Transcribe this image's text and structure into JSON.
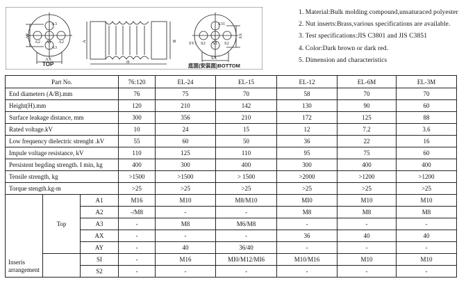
{
  "drawing": {
    "top_labels": {
      "a1": "A1",
      "a2": "A2",
      "a3": "A3",
      "ax": "AX",
      "ay": "AY",
      "caption": "TOP"
    },
    "side_labels": {
      "a": "A",
      "b": "B",
      "h": "H"
    },
    "bottom_labels": {
      "s1": "S1",
      "s2": "S2",
      "s31": "S31",
      "sx": "SX",
      "sy": "SY",
      "sy1": "SY1",
      "caption": "底面(安装面)BOTTOM"
    }
  },
  "notes": [
    "1. Material:Bulk molding compound,unsaturaced polyester",
    "2. Nut inserts:Brass,various specifications are available.",
    "3. Test specifications:JIS C3801 and JIS C3851",
    "4. Color:Dark brown or dark red.",
    "5. Dimension and characteristics"
  ],
  "table": {
    "header": [
      "Part No.",
      "76:120",
      "EL-24",
      "EL-15",
      "EL-12",
      "EL-6M",
      "EL-3M"
    ],
    "rows": [
      {
        "label": "End diameters (A/B).mm",
        "values": [
          "76",
          "75",
          "70",
          "58",
          "70",
          "70"
        ]
      },
      {
        "label": "Height(H).mm",
        "values": [
          "120",
          "210",
          "142",
          "130",
          "90",
          "60"
        ]
      },
      {
        "label": "Surface leakage distance, mm",
        "values": [
          "300",
          "356",
          "210",
          "172",
          "125",
          "88"
        ]
      },
      {
        "label": "Rated voltage.kV",
        "values": [
          "10",
          "24",
          "15",
          "12",
          "7.2",
          "3.6"
        ]
      },
      {
        "label": "Low frequency dielectric strenght .kV",
        "values": [
          "55",
          "60",
          "50",
          "36",
          "22",
          "16"
        ]
      },
      {
        "label": "Impule voltage resistance, kV",
        "values": [
          "110",
          "125",
          "110",
          "95",
          "75",
          "60"
        ]
      },
      {
        "label": "Persistent begding strength. I min, kg",
        "values": [
          "400",
          "300",
          "400",
          "300",
          "400",
          "400"
        ]
      },
      {
        "label": "Tensile strength, kg",
        "values": [
          ">1500",
          ">1500",
          "> 1500",
          ">2000",
          ">1200",
          ">1200"
        ]
      },
      {
        "label": "Torque stength.kg-m",
        "values": [
          ">25",
          ">25",
          ">25",
          ">25",
          ">25",
          ">25"
        ]
      }
    ],
    "inserts": {
      "group_label": "Inseris arrangement",
      "top_label": "Top",
      "rows": [
        {
          "key": "A1",
          "values": [
            "M16",
            "M10",
            "M8/M10",
            "MI0",
            "M10",
            "M10"
          ]
        },
        {
          "key": "A2",
          "values": [
            "-/M8",
            "-",
            "-",
            "M8",
            "M8",
            "M8"
          ]
        },
        {
          "key": "A3",
          "values": [
            "-",
            "M8",
            "M6/M8",
            "-",
            "-",
            "-"
          ]
        },
        {
          "key": "AX",
          "values": [
            "-",
            "-",
            "-",
            "36",
            "40",
            "40"
          ]
        },
        {
          "key": "AY",
          "values": [
            "-",
            "40",
            "36/40",
            "-",
            "-",
            "-"
          ]
        },
        {
          "key": "SI",
          "values": [
            "-",
            "M16",
            "MI0/M12/MI6",
            "M10/M16",
            "M10",
            "M10"
          ]
        },
        {
          "key": "S2",
          "values": [
            "-",
            "-",
            "-",
            "-",
            "-",
            "-"
          ]
        }
      ]
    }
  }
}
